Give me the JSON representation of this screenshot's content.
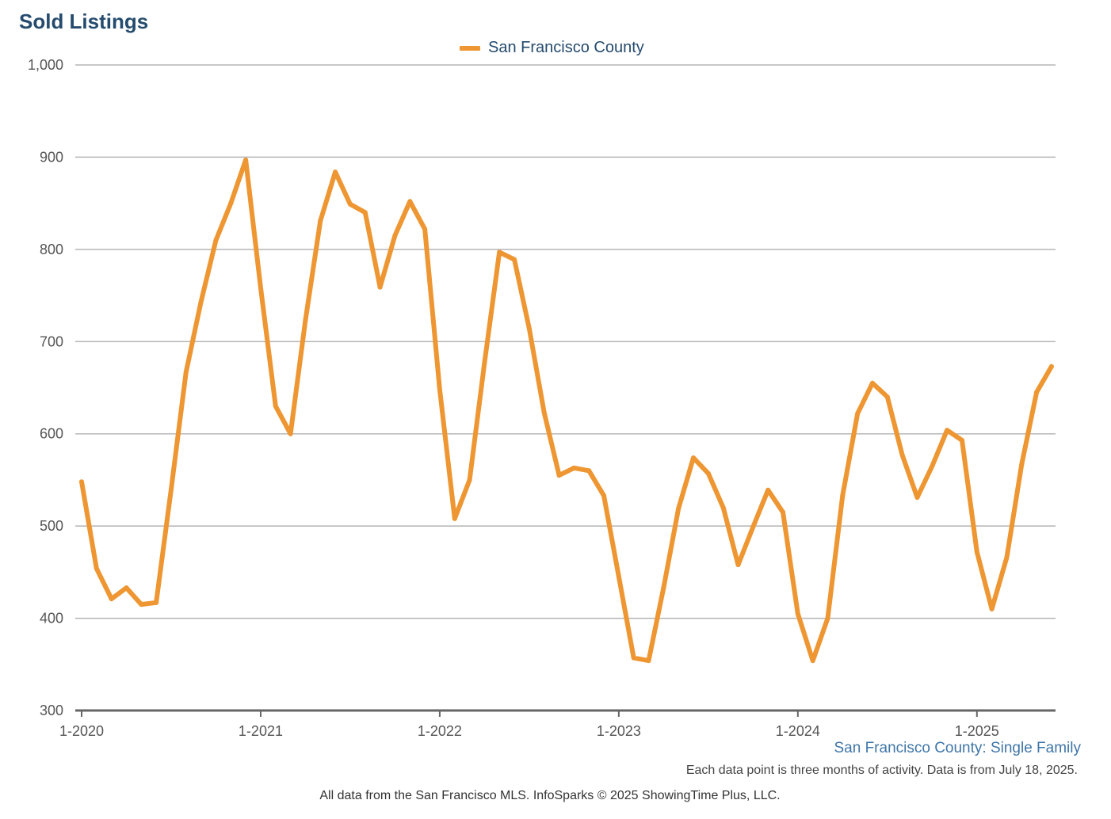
{
  "colors": {
    "series": "#ee9632",
    "title": "#254b6e",
    "grid": "#b5b5b5",
    "axis": "#666666",
    "subtitle": "#3f76a8"
  },
  "chart_data": {
    "type": "line",
    "title": "Sold Listings",
    "subtitle": "San Francisco County: Single Family",
    "note": "Each data point is three months of activity. Data is from July 18, 2025.",
    "source": "All data from the San Francisco MLS. InfoSparks © 2025 ShowingTime Plus, LLC.",
    "legend_position": "top-center",
    "grid": true,
    "ylim": [
      300,
      1000
    ],
    "yticks": [
      300,
      400,
      500,
      600,
      700,
      800,
      900,
      1000
    ],
    "ytick_labels": [
      "300",
      "400",
      "500",
      "600",
      "700",
      "800",
      "900",
      "1,000"
    ],
    "xtick_labels": [
      "1-2020",
      "1-2021",
      "1-2022",
      "1-2023",
      "1-2024",
      "1-2025"
    ],
    "x_start": "1-2020",
    "x": [
      "1-2020",
      "2-2020",
      "3-2020",
      "4-2020",
      "5-2020",
      "6-2020",
      "7-2020",
      "8-2020",
      "9-2020",
      "10-2020",
      "11-2020",
      "12-2020",
      "1-2021",
      "2-2021",
      "3-2021",
      "4-2021",
      "5-2021",
      "6-2021",
      "7-2021",
      "8-2021",
      "9-2021",
      "10-2021",
      "11-2021",
      "12-2021",
      "1-2022",
      "2-2022",
      "3-2022",
      "4-2022",
      "5-2022",
      "6-2022",
      "7-2022",
      "8-2022",
      "9-2022",
      "10-2022",
      "11-2022",
      "12-2022",
      "1-2023",
      "2-2023",
      "3-2023",
      "4-2023",
      "5-2023",
      "6-2023",
      "7-2023",
      "8-2023",
      "9-2023",
      "10-2023",
      "11-2023",
      "12-2023",
      "1-2024",
      "2-2024",
      "3-2024",
      "4-2024",
      "5-2024",
      "6-2024",
      "7-2024",
      "8-2024",
      "9-2024",
      "10-2024",
      "11-2024",
      "12-2024",
      "1-2025",
      "2-2025",
      "3-2025",
      "4-2025",
      "5-2025",
      "6-2025"
    ],
    "series": [
      {
        "name": "San Francisco County",
        "values": [
          548,
          454,
          421,
          433,
          415,
          417,
          540,
          667,
          743,
          810,
          850,
          897,
          758,
          630,
          600,
          723,
          831,
          884,
          849,
          840,
          759,
          815,
          852,
          822,
          648,
          508,
          550,
          677,
          797,
          789,
          714,
          623,
          555,
          563,
          560,
          533,
          445,
          357,
          354,
          433,
          519,
          574,
          557,
          520,
          458,
          499,
          539,
          515,
          405,
          354,
          400,
          533,
          622,
          655,
          640,
          577,
          531,
          565,
          604,
          593,
          472,
          410,
          466,
          567,
          645,
          673
        ]
      }
    ]
  }
}
